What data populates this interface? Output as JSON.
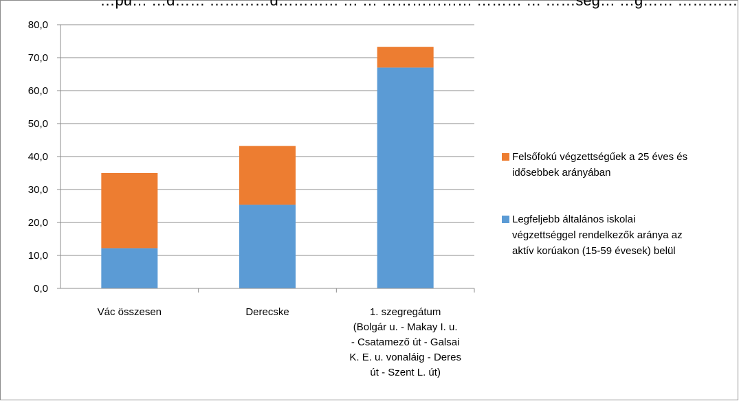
{
  "chart_data": {
    "type": "bar",
    "stacked": true,
    "title": "…pu… …d…… …………d………… … … ……………… ……… … ……ség… …g…… ………… …y…",
    "categories": [
      [
        "Vác összesen"
      ],
      [
        "Derecske"
      ],
      [
        "1. szegregátum",
        "(Bolgár u. - Makay I. u.",
        "- Csatamező út - Galsai",
        "K. E. u. vonaláig - Deres",
        "út - Szent L. út)"
      ]
    ],
    "series": [
      {
        "name": "Legfeljebb általános iskolai végzettséggel rendelkezők aránya az aktív korúakon (15-59 évesek) belül",
        "legend_lines": [
          "Legfeljebb általános iskolai",
          "végzettséggel rendelkezők aránya az",
          "aktív korúakon (15-59 évesek) belül"
        ],
        "color": "#5b9bd5",
        "values": [
          12.2,
          25.4,
          67.0
        ]
      },
      {
        "name": "Felsőfokú végzettségűek a 25 éves és idősebbek arányában",
        "legend_lines": [
          "Felsőfokú végzettségűek a 25 éves és",
          "idősebbek arányában"
        ],
        "color": "#ed7d31",
        "values": [
          22.8,
          17.8,
          6.3
        ]
      }
    ],
    "ylim": [
      0,
      80
    ],
    "yticks": [
      "0,0",
      "10,0",
      "20,0",
      "30,0",
      "40,0",
      "50,0",
      "60,0",
      "70,0",
      "80,0"
    ],
    "grid": true,
    "legend_position": "right"
  }
}
